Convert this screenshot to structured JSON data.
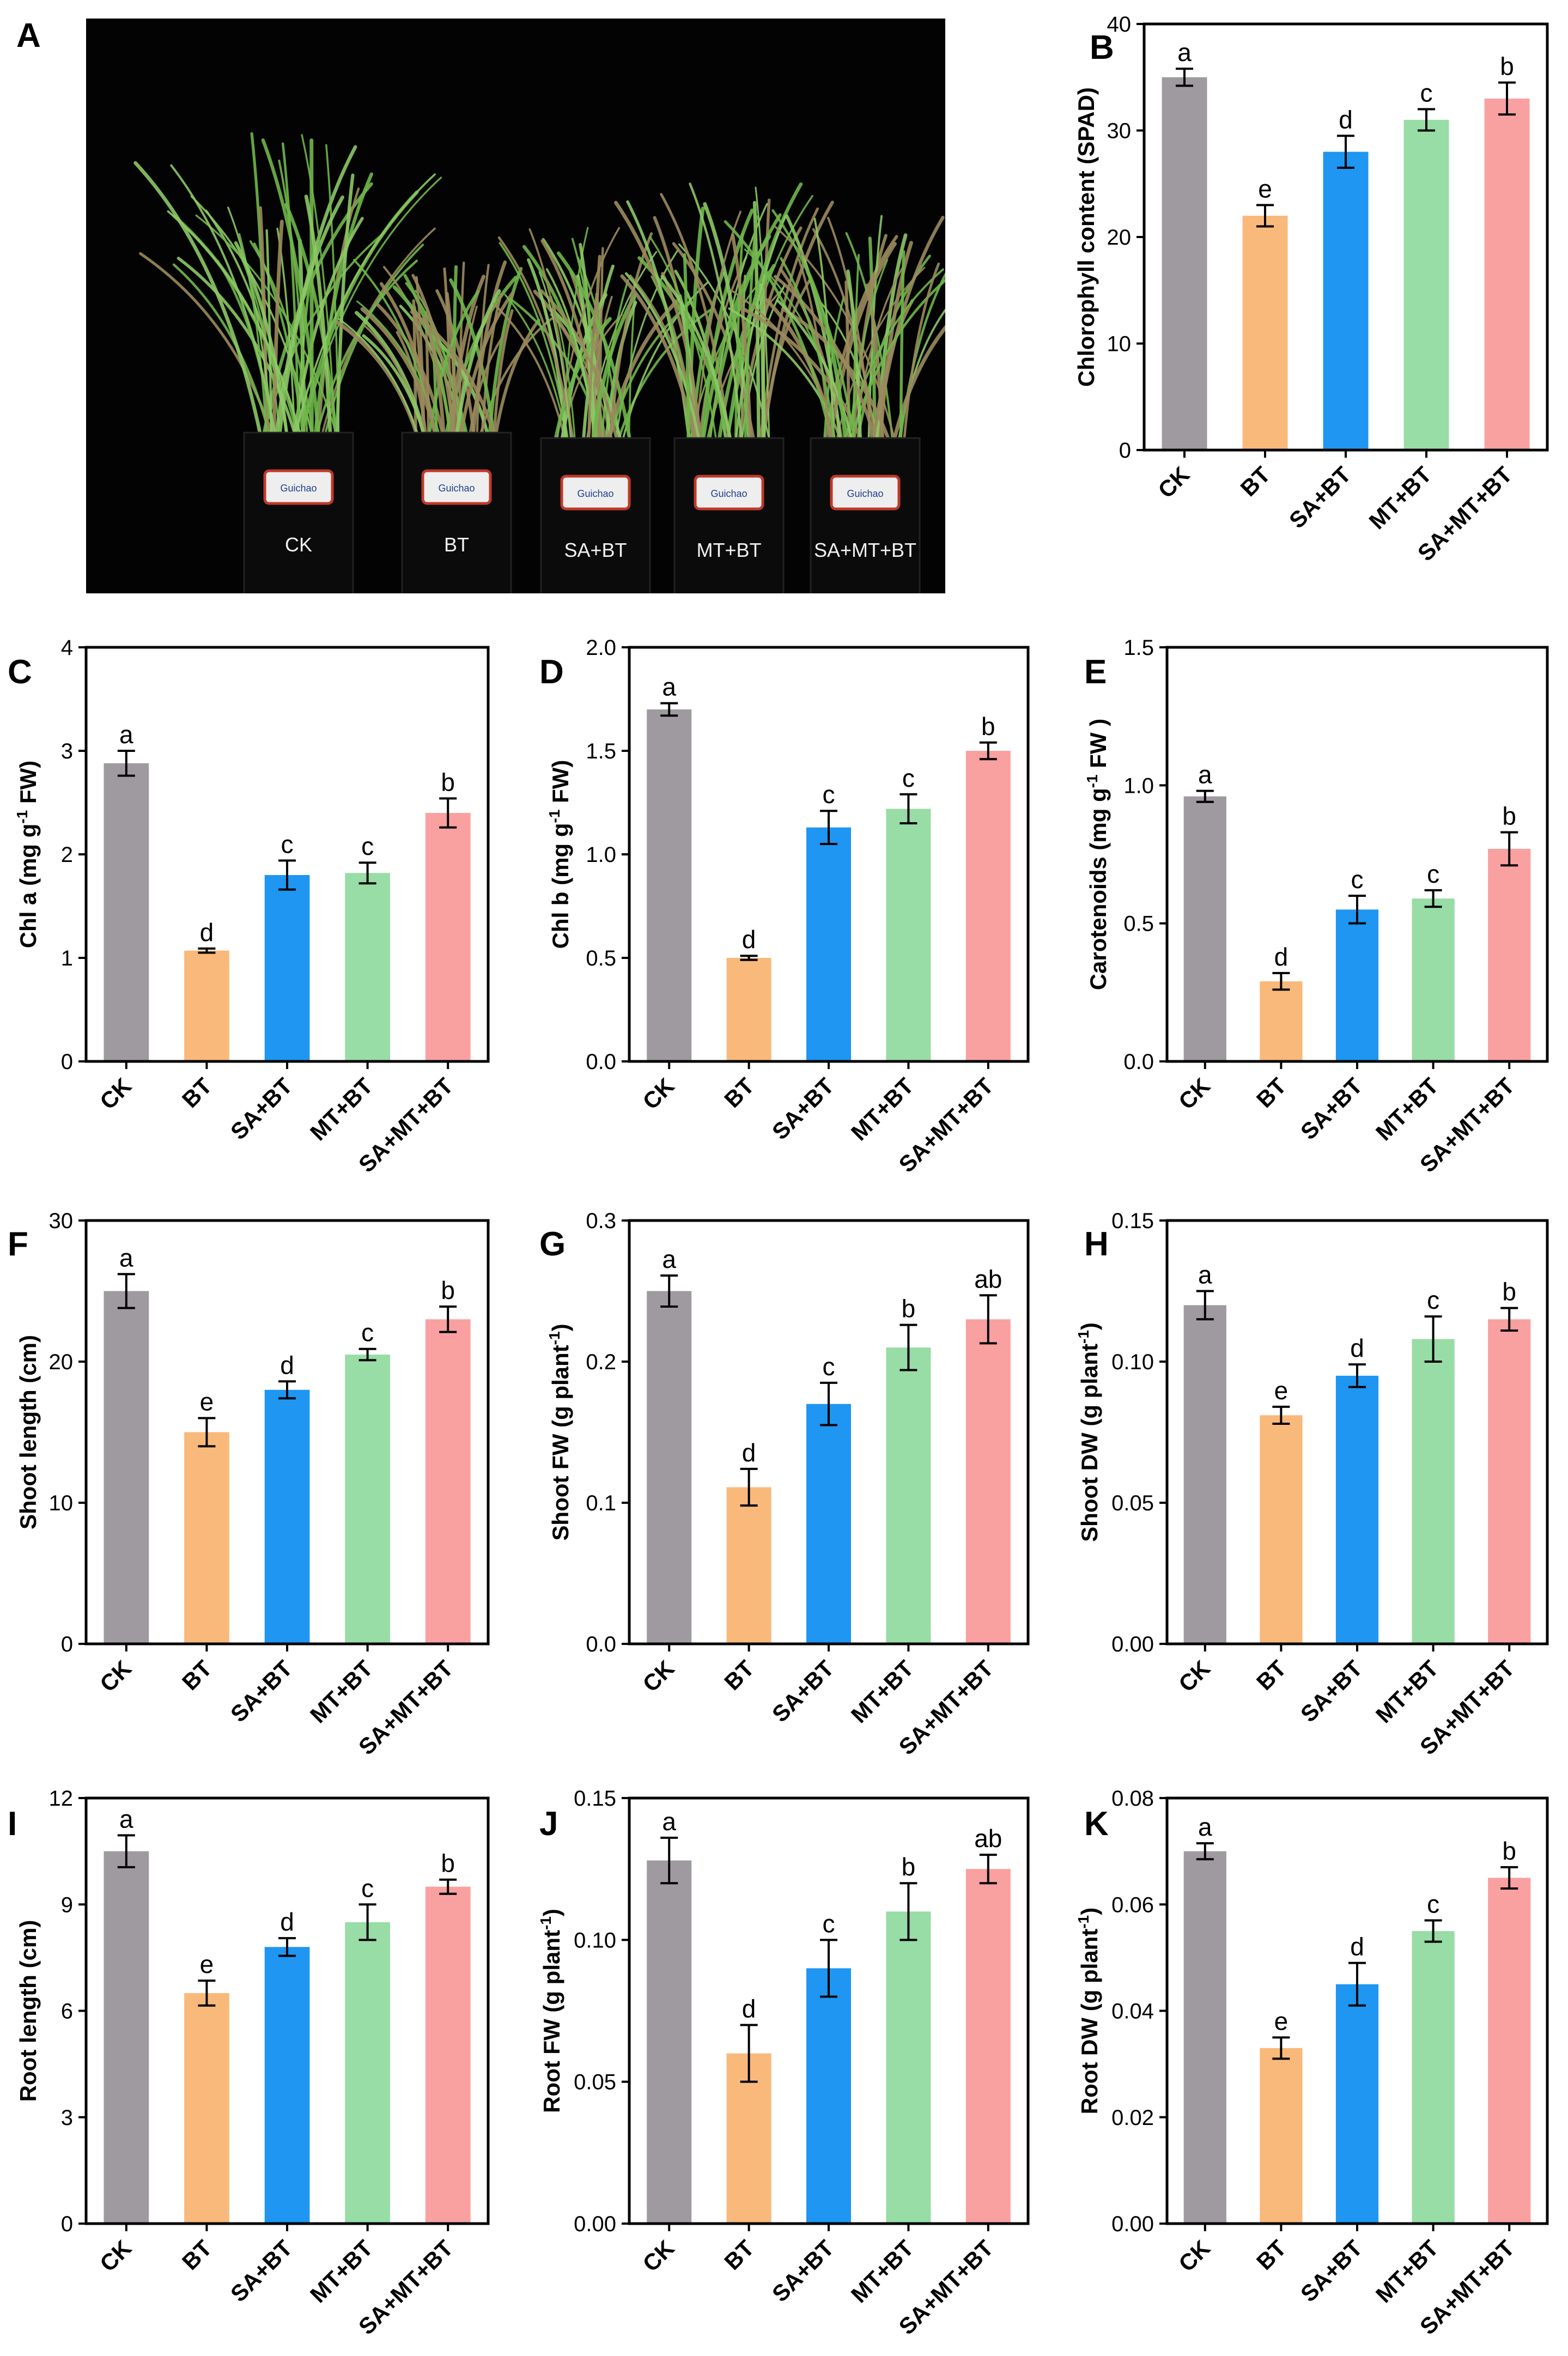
{
  "figure": {
    "colors": {
      "bars": [
        "#9e9a9f",
        "#f9b97b",
        "#1e96f2",
        "#98dca6",
        "#f9a0a0"
      ],
      "photo_bg": "#030303",
      "foliage": "#6fb64a"
    },
    "photo": {
      "letter": "A",
      "pot_labels": [
        "CK",
        "BT",
        "SA+BT",
        "MT+BT",
        "SA+MT+BT"
      ],
      "tag_text": "Guichao"
    }
  },
  "chart_data": [
    {
      "id": "B",
      "type": "bar",
      "categories": [
        "CK",
        "BT",
        "SA+BT",
        "MT+BT",
        "SA+MT+BT"
      ],
      "values": [
        35.0,
        22.0,
        28.0,
        31.0,
        33.0
      ],
      "errors": [
        0.8,
        1.0,
        1.5,
        1.0,
        1.5
      ],
      "letters": [
        "a",
        "e",
        "d",
        "c",
        "b"
      ],
      "ylabel": "Chlorophyll content (SPAD)",
      "ylim": [
        0,
        40
      ],
      "yticks": [
        "0",
        "10",
        "20",
        "30",
        "40"
      ]
    },
    {
      "id": "C",
      "type": "bar",
      "categories": [
        "CK",
        "BT",
        "SA+BT",
        "MT+BT",
        "SA+MT+BT"
      ],
      "values": [
        2.88,
        1.07,
        1.8,
        1.82,
        2.4
      ],
      "errors": [
        0.12,
        0.02,
        0.14,
        0.1,
        0.14
      ],
      "letters": [
        "a",
        "d",
        "c",
        "c",
        "b"
      ],
      "ylabel_pre": "Chl a  (mg g",
      "ylabel_sup": "-1",
      "ylabel_post": " FW)",
      "ylim": [
        0,
        4
      ],
      "yticks": [
        "0",
        "1",
        "2",
        "3",
        "4"
      ]
    },
    {
      "id": "D",
      "type": "bar",
      "categories": [
        "CK",
        "BT",
        "SA+BT",
        "MT+BT",
        "SA+MT+BT"
      ],
      "values": [
        1.7,
        0.5,
        1.13,
        1.22,
        1.5
      ],
      "errors": [
        0.03,
        0.01,
        0.08,
        0.07,
        0.04
      ],
      "letters": [
        "a",
        "d",
        "c",
        "c",
        "b"
      ],
      "ylabel_pre": "Chl b  (mg g",
      "ylabel_sup": "-1",
      "ylabel_post": " FW)",
      "ylim": [
        0,
        2
      ],
      "yticks": [
        "0.0",
        "0.5",
        "1.0",
        "1.5",
        "2.0"
      ]
    },
    {
      "id": "E",
      "type": "bar",
      "categories": [
        "CK",
        "BT",
        "SA+BT",
        "MT+BT",
        "SA+MT+BT"
      ],
      "values": [
        0.96,
        0.29,
        0.55,
        0.59,
        0.77
      ],
      "errors": [
        0.02,
        0.03,
        0.05,
        0.03,
        0.06
      ],
      "letters": [
        "a",
        "d",
        "c",
        "c",
        "b"
      ],
      "ylabel_pre": "Carotenoids  (mg g",
      "ylabel_sup": "-1",
      "ylabel_post": " FW )",
      "ylim": [
        0,
        1.5
      ],
      "yticks": [
        "0.0",
        "0.5",
        "1.0",
        "1.5"
      ]
    },
    {
      "id": "F",
      "type": "bar",
      "categories": [
        "CK",
        "BT",
        "SA+BT",
        "MT+BT",
        "SA+MT+BT"
      ],
      "values": [
        25.0,
        15.0,
        18.0,
        20.5,
        23.0
      ],
      "errors": [
        1.2,
        1.0,
        0.6,
        0.4,
        0.9
      ],
      "letters": [
        "a",
        "e",
        "d",
        "c",
        "b"
      ],
      "ylabel": "Shoot length (cm)",
      "ylim": [
        0,
        30
      ],
      "yticks": [
        "0",
        "10",
        "20",
        "30"
      ]
    },
    {
      "id": "G",
      "type": "bar",
      "categories": [
        "CK",
        "BT",
        "SA+BT",
        "MT+BT",
        "SA+MT+BT"
      ],
      "values": [
        0.25,
        0.111,
        0.17,
        0.21,
        0.23
      ],
      "errors": [
        0.011,
        0.013,
        0.015,
        0.016,
        0.017
      ],
      "letters": [
        "a",
        "d",
        "c",
        "b",
        "ab"
      ],
      "ylabel_pre": "Shoot FW (g plant",
      "ylabel_sup": "-1",
      "ylabel_post": ")",
      "ylim": [
        0,
        0.3
      ],
      "yticks": [
        "0.0",
        "0.1",
        "0.2",
        "0.3"
      ]
    },
    {
      "id": "H",
      "type": "bar",
      "categories": [
        "CK",
        "BT",
        "SA+BT",
        "MT+BT",
        "SA+MT+BT"
      ],
      "values": [
        0.12,
        0.081,
        0.095,
        0.108,
        0.115
      ],
      "errors": [
        0.005,
        0.003,
        0.004,
        0.008,
        0.004
      ],
      "letters": [
        "a",
        "e",
        "d",
        "c",
        "b"
      ],
      "ylabel_pre": "Shoot DW (g plant",
      "ylabel_sup": "-1",
      "ylabel_post": ")",
      "ylim": [
        0,
        0.15
      ],
      "yticks": [
        "0.00",
        "0.05",
        "0.10",
        "0.15"
      ]
    },
    {
      "id": "I",
      "type": "bar",
      "categories": [
        "CK",
        "BT",
        "SA+BT",
        "MT+BT",
        "SA+MT+BT"
      ],
      "values": [
        10.5,
        6.5,
        7.8,
        8.5,
        9.5
      ],
      "errors": [
        0.45,
        0.35,
        0.25,
        0.5,
        0.2
      ],
      "letters": [
        "a",
        "e",
        "d",
        "c",
        "b"
      ],
      "ylabel": "Root length (cm)",
      "ylim": [
        0,
        12
      ],
      "yticks": [
        "0",
        "3",
        "6",
        "9",
        "12"
      ]
    },
    {
      "id": "J",
      "type": "bar",
      "categories": [
        "CK",
        "BT",
        "SA+BT",
        "MT+BT",
        "SA+MT+BT"
      ],
      "values": [
        0.128,
        0.06,
        0.09,
        0.11,
        0.125
      ],
      "errors": [
        0.008,
        0.01,
        0.01,
        0.01,
        0.005
      ],
      "letters": [
        "a",
        "d",
        "c",
        "b",
        "ab"
      ],
      "ylabel_pre": "Root FW (g plant",
      "ylabel_sup": "-1",
      "ylabel_post": ")",
      "ylim": [
        0,
        0.15
      ],
      "yticks": [
        "0.00",
        "0.05",
        "0.10",
        "0.15"
      ]
    },
    {
      "id": "K",
      "type": "bar",
      "categories": [
        "CK",
        "BT",
        "SA+BT",
        "MT+BT",
        "SA+MT+BT"
      ],
      "values": [
        0.07,
        0.033,
        0.045,
        0.055,
        0.065
      ],
      "errors": [
        0.0015,
        0.002,
        0.004,
        0.002,
        0.002
      ],
      "letters": [
        "a",
        "e",
        "d",
        "c",
        "b"
      ],
      "ylabel_pre": "Root DW (g plant",
      "ylabel_sup": "-1",
      "ylabel_post": ")",
      "ylim": [
        0,
        0.08
      ],
      "yticks": [
        "0.00",
        "0.02",
        "0.04",
        "0.06",
        "0.08"
      ]
    }
  ]
}
